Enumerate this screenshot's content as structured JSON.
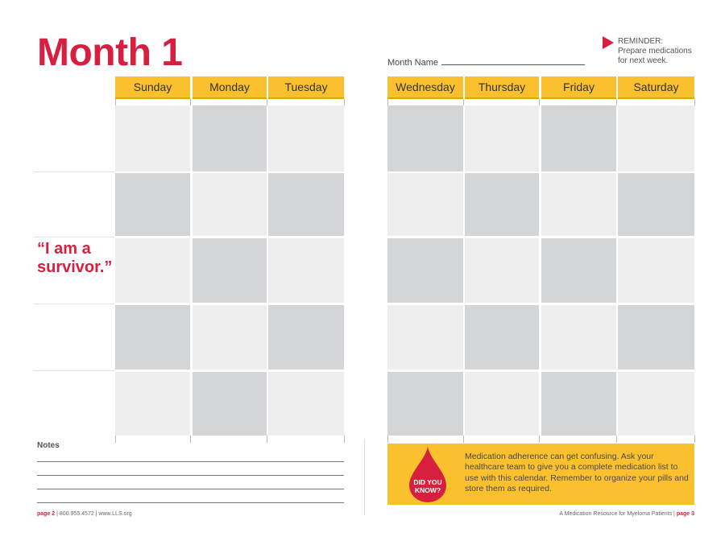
{
  "page": {
    "title": "Month 1"
  },
  "month_name": {
    "label": "Month Name"
  },
  "reminder": {
    "line1": "REMINDER:",
    "line2": "Prepare medications",
    "line3": "for next week."
  },
  "days": {
    "left": [
      "Sunday",
      "Monday",
      "Tuesday"
    ],
    "right": [
      "Wednesday",
      "Thursday",
      "Friday",
      "Saturday"
    ]
  },
  "quote": {
    "line1": "“I am a",
    "line2": "survivor.”"
  },
  "notes": {
    "label": "Notes"
  },
  "did_you_know": {
    "badge_line1": "DID YOU",
    "badge_line2": "KNOW?",
    "text": "Medication adherence can get confusing. Ask your healthcare team to give you a complete medication list to use with this calendar. Remember to organize your pills and store them as required."
  },
  "footer": {
    "left_page": "page 2",
    "left_rest": "800.955.4572 | www.LLS.org",
    "right_text": "A Medication Resource for Myeloma Patients",
    "right_page": "page 3"
  },
  "colors": {
    "accent": "#d81f3f",
    "header": "#fbc02d",
    "cell_light": "#eeeeee",
    "cell_dark": "#d4d5d7"
  }
}
